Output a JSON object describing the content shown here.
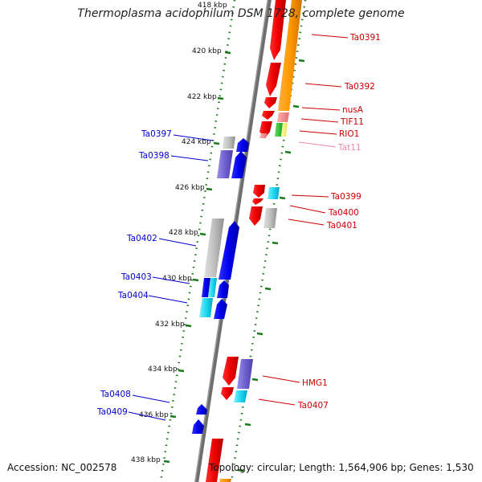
{
  "title": "Thermoplasma acidophilum DSM 1728, complete genome",
  "footer": {
    "accession": "Accession: NC_002578",
    "summary": "Topology: circular; Length: 1,564,906 bp; Genes: 1,530"
  },
  "colors": {
    "backbone": "#808080",
    "tick": "#1a7a1a",
    "label_plus": "#cc0000",
    "label_plus_faded": "#ee88aa",
    "label_minus": "#0000cc"
  },
  "scale": {
    "unit": "kbp",
    "ticks": [
      {
        "kbp": 418,
        "label": "418 kbp"
      },
      {
        "kbp": 420,
        "label": "420 kbp"
      },
      {
        "kbp": 422,
        "label": "422 kbp"
      },
      {
        "kbp": 424,
        "label": "424 kbp"
      },
      {
        "kbp": 426,
        "label": "426 kbp"
      },
      {
        "kbp": 428,
        "label": "428 kbp"
      },
      {
        "kbp": 430,
        "label": "430 kbp"
      },
      {
        "kbp": 432,
        "label": "432 kbp"
      },
      {
        "kbp": 434,
        "label": "434 kbp"
      },
      {
        "kbp": 436,
        "label": "436 kbp"
      },
      {
        "kbp": 438,
        "label": "438 kbp"
      }
    ]
  },
  "gene_labels_right": [
    {
      "text": "Ta0391",
      "faded": false
    },
    {
      "text": "Ta0392",
      "faded": false
    },
    {
      "text": "nusA",
      "faded": false
    },
    {
      "text": "TIF11",
      "faded": false
    },
    {
      "text": "RIO1",
      "faded": false
    },
    {
      "text": "Tat11",
      "faded": true
    },
    {
      "text": "Ta0399",
      "faded": false
    },
    {
      "text": "Ta0400",
      "faded": false
    },
    {
      "text": "Ta0401",
      "faded": false
    },
    {
      "text": "HMG1",
      "faded": false
    },
    {
      "text": "Ta0407",
      "faded": false
    }
  ],
  "gene_labels_left": [
    {
      "text": "Ta0397"
    },
    {
      "text": "Ta0398"
    },
    {
      "text": "Ta0402"
    },
    {
      "text": "Ta0403"
    },
    {
      "text": "Ta0404"
    },
    {
      "text": "Ta0408"
    },
    {
      "text": "Ta0409"
    }
  ],
  "feature_colors": [
    "red",
    "orange",
    "blue",
    "purple",
    "gray",
    "cyan",
    "green",
    "yellow",
    "pink"
  ]
}
